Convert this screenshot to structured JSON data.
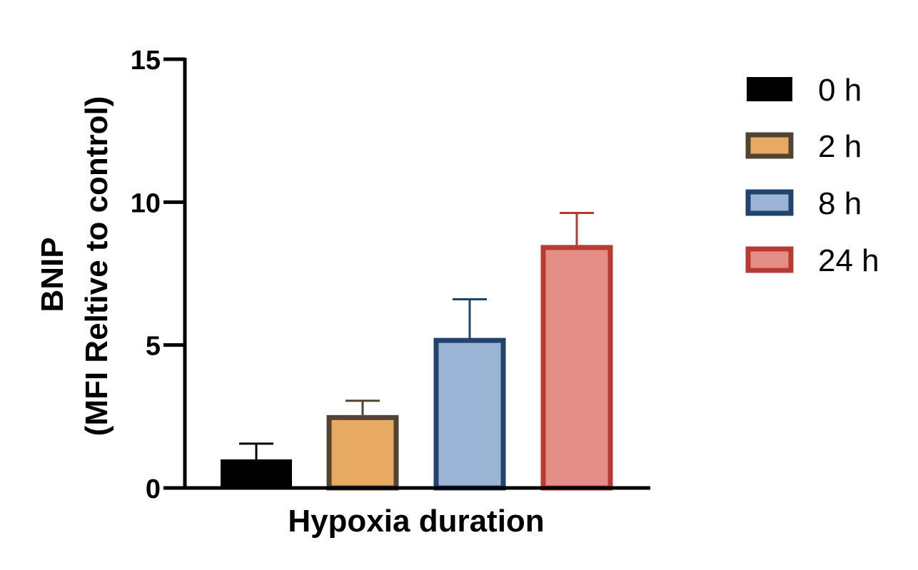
{
  "chart_data": {
    "type": "bar",
    "xlabel": "Hypoxia duration",
    "ylabel_lines": [
      "BNIP",
      "(MFI Reltive to control)"
    ],
    "ylim": [
      0,
      15
    ],
    "yticks": [
      0,
      5,
      10,
      15
    ],
    "grid": false,
    "legend_position": "right",
    "series": [
      {
        "name": "0 h",
        "value": 1.0,
        "error": 0.55,
        "fill": "#000000",
        "stroke": "#000000"
      },
      {
        "name": "2 h",
        "value": 2.55,
        "error": 0.5,
        "fill": "#E8A962",
        "stroke": "#524432"
      },
      {
        "name": "8 h",
        "value": 5.25,
        "error": 1.35,
        "fill": "#9BB3D4",
        "stroke": "#22446C"
      },
      {
        "name": "24 h",
        "value": 8.5,
        "error": 1.12,
        "fill": "#E58E88",
        "stroke": "#B93A35"
      }
    ]
  }
}
